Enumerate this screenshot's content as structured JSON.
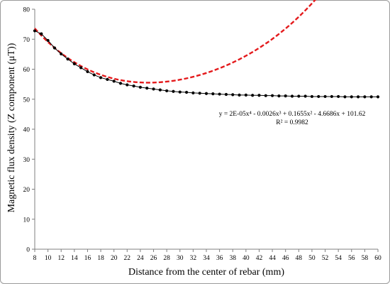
{
  "chart_data": {
    "type": "line",
    "xlabel": "Distance from the center of rebar (mm)",
    "ylabel": "Magnetic flux density (Z component (μT))",
    "xlim": [
      8,
      60
    ],
    "ylim": [
      0,
      80
    ],
    "xticks": [
      8,
      10,
      12,
      14,
      16,
      18,
      20,
      22,
      24,
      26,
      28,
      30,
      32,
      34,
      36,
      38,
      40,
      42,
      44,
      46,
      48,
      50,
      52,
      54,
      56,
      58,
      60
    ],
    "yticks": [
      0,
      10,
      20,
      30,
      40,
      50,
      60,
      70,
      80
    ],
    "grid": false,
    "series": [
      {
        "marker_color": "#000000",
        "line_color": "#000000",
        "x": [
          8,
          9,
          10,
          11,
          12,
          13,
          14,
          15,
          16,
          17,
          18,
          19,
          20,
          21,
          22,
          23,
          24,
          25,
          26,
          27,
          28,
          29,
          30,
          31,
          32,
          33,
          34,
          35,
          36,
          37,
          38,
          39,
          40,
          41,
          42,
          43,
          44,
          45,
          46,
          47,
          48,
          49,
          50,
          51,
          52,
          53,
          54,
          55,
          56,
          57,
          58,
          59,
          60
        ],
        "y": [
          72.8,
          71.8,
          69.6,
          67.1,
          65.1,
          63.4,
          61.8,
          60.5,
          59.2,
          58.1,
          57.2,
          56.6,
          56.0,
          55.3,
          54.8,
          54.4,
          54.0,
          53.7,
          53.4,
          53.1,
          52.8,
          52.6,
          52.4,
          52.3,
          52.1,
          52.0,
          51.9,
          51.8,
          51.7,
          51.6,
          51.5,
          51.4,
          51.4,
          51.3,
          51.3,
          51.2,
          51.2,
          51.1,
          51.1,
          51.0,
          51.0,
          51.0,
          50.9,
          50.9,
          50.9,
          50.9,
          50.9,
          50.8,
          50.8,
          50.8,
          50.8,
          50.8,
          50.8
        ]
      }
    ],
    "trendline": {
      "type": "polynomial",
      "order": 4,
      "color": "#e41a1c",
      "coefficients": [
        2e-05,
        -0.0026,
        0.1655,
        -4.6686,
        101.62
      ],
      "equation": "y = 2E-05x⁴ - 0.0026x³ + 0.1655x² - 4.6686x + 101.62",
      "r_squared": "R² = 0.9982"
    }
  }
}
